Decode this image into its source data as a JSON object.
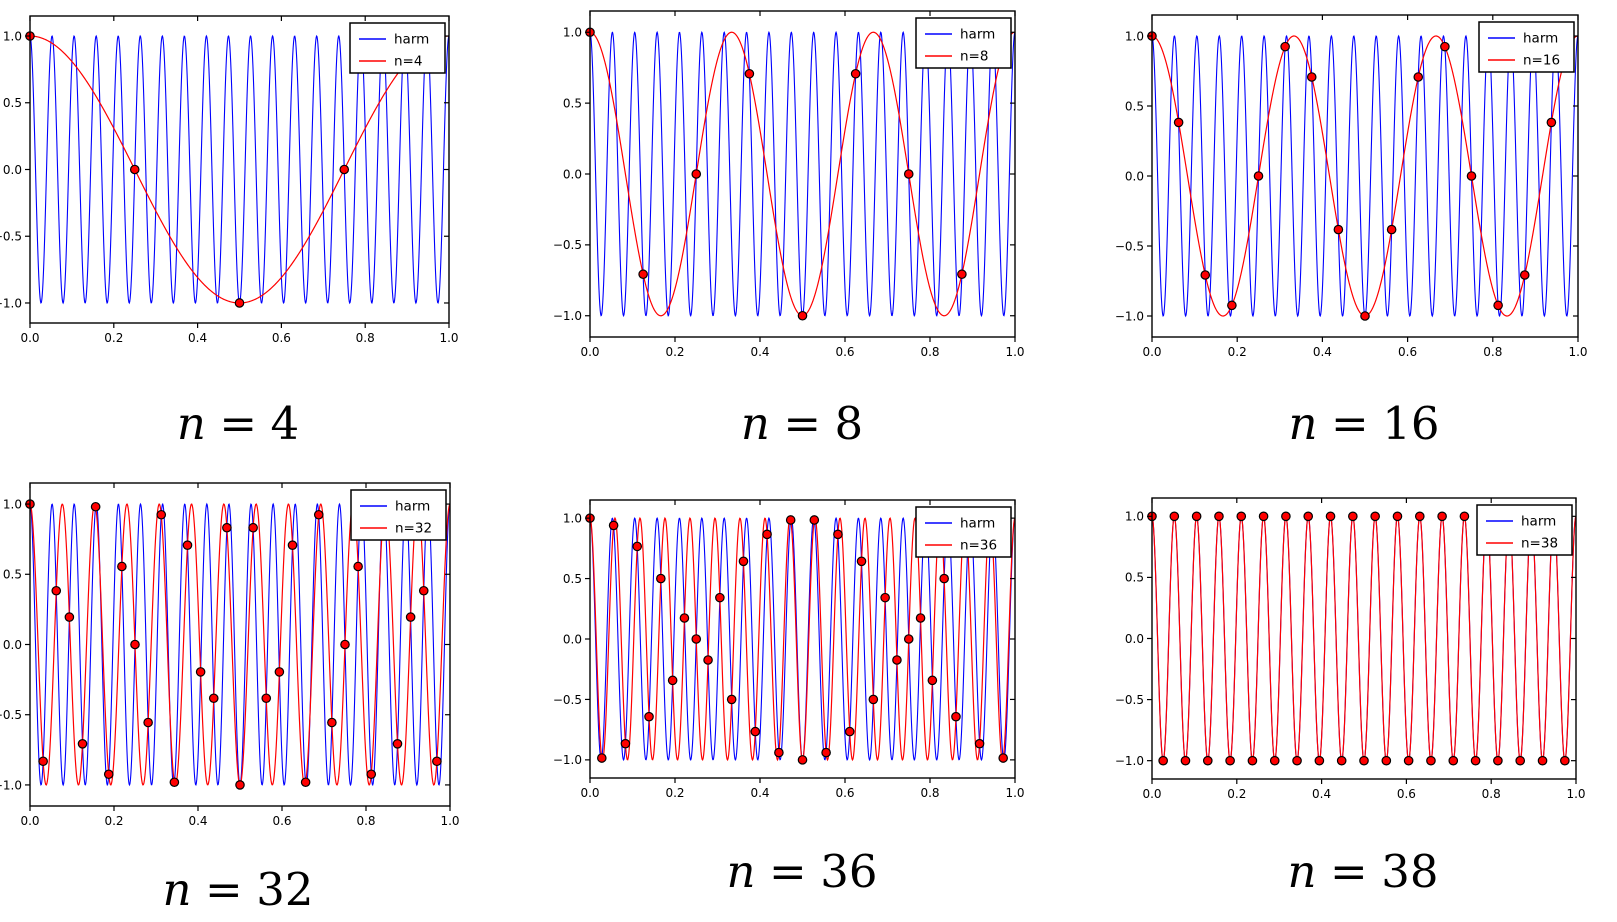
{
  "chart_data": {
    "type": "line",
    "title": "",
    "description": "Sampling and aliasing demonstration: a high-frequency harmonic cos(2*pi*19*x) on [0,1] (blue curve 'harm') is sampled at n uniform points (red dots at x=k/n); the red curve is the aliased low-frequency reconstruction cos(2*pi*f_alias*x).",
    "axes": {
      "xlim": [
        0,
        1
      ],
      "ylim_data": [
        -1,
        1
      ],
      "grid": false,
      "x_ticks": [
        {
          "v": 0.0,
          "label": "0.0"
        },
        {
          "v": 0.2,
          "label": "0.2"
        },
        {
          "v": 0.4,
          "label": "0.4"
        },
        {
          "v": 0.6,
          "label": "0.6"
        },
        {
          "v": 0.8,
          "label": "0.8"
        },
        {
          "v": 1.0,
          "label": "1.0"
        }
      ],
      "y_ticks": [
        {
          "v": 1.0,
          "label": "1.0"
        },
        {
          "v": 0.5,
          "label": "0.5"
        },
        {
          "v": 0.0,
          "label": "0.0"
        },
        {
          "v": -0.5,
          "label": "−0.5"
        },
        {
          "v": -1.0,
          "label": "−1.0"
        }
      ]
    },
    "colors": {
      "harm": "#0000ff",
      "alias": "#ff0000",
      "marker_fill": "#ff0000",
      "marker_edge": "#000000",
      "frame": "#000000",
      "legend_border": "#000000",
      "legend_bg": "#ffffff"
    },
    "legend_position": "upper right",
    "marker": "filled circle",
    "samples_rule": "x_k = k/n, y_k = cos(2π·19·k/n), k = 0…n−1",
    "subplots": [
      {
        "caption": {
          "symbol": "n",
          "relation": "=",
          "value": "4"
        },
        "legend": [
          "harm",
          "n=4"
        ],
        "harm_frequency": 19,
        "alias_frequency": 1,
        "n_samples": 4,
        "sample_points": [
          [
            0,
            1
          ],
          [
            0.25,
            0
          ],
          [
            0.5,
            -1
          ],
          [
            0.75,
            0
          ]
        ]
      },
      {
        "caption": {
          "symbol": "n",
          "relation": "=",
          "value": "8"
        },
        "legend": [
          "harm",
          "n=8"
        ],
        "harm_frequency": 19,
        "alias_frequency": 3,
        "n_samples": 8,
        "sample_points": [
          [
            0,
            1
          ],
          [
            0.125,
            -0.7071
          ],
          [
            0.25,
            0
          ],
          [
            0.375,
            0.7071
          ],
          [
            0.5,
            -1
          ],
          [
            0.625,
            0.7071
          ],
          [
            0.75,
            0
          ],
          [
            0.875,
            -0.7071
          ]
        ]
      },
      {
        "caption": {
          "symbol": "n",
          "relation": "=",
          "value": "16"
        },
        "legend": [
          "harm",
          "n=16"
        ],
        "harm_frequency": 19,
        "alias_frequency": 3,
        "n_samples": 16,
        "sample_points": [
          [
            0,
            1
          ],
          [
            0.0625,
            0.3827
          ],
          [
            0.125,
            -0.7071
          ],
          [
            0.1875,
            -0.9239
          ],
          [
            0.25,
            0
          ],
          [
            0.3125,
            0.9239
          ],
          [
            0.375,
            0.7071
          ],
          [
            0.4375,
            -0.3827
          ],
          [
            0.5,
            -1
          ],
          [
            0.5625,
            -0.3827
          ],
          [
            0.625,
            0.7071
          ],
          [
            0.6875,
            0.9239
          ],
          [
            0.75,
            0
          ],
          [
            0.8125,
            -0.9239
          ],
          [
            0.875,
            -0.7071
          ],
          [
            0.9375,
            0.3827
          ]
        ]
      },
      {
        "caption": {
          "symbol": "n",
          "relation": "=",
          "value": "32"
        },
        "legend": [
          "harm",
          "n=32"
        ],
        "harm_frequency": 19,
        "alias_frequency": 13,
        "n_samples": 32,
        "sample_points": "x_k = k/32, y_k = cos(2π·19·k/32), k = 0…31"
      },
      {
        "caption": {
          "symbol": "n",
          "relation": "=",
          "value": "36"
        },
        "legend": [
          "harm",
          "n=36"
        ],
        "harm_frequency": 19,
        "alias_frequency": 17,
        "n_samples": 36,
        "sample_points": "x_k = k/36, y_k = cos(2π·19·k/36), k = 0…35"
      },
      {
        "caption": {
          "symbol": "n",
          "relation": "=",
          "value": "38"
        },
        "legend": [
          "harm",
          "n=38"
        ],
        "harm_frequency": 19,
        "alias_frequency": 19,
        "n_samples": 38,
        "sample_points": "x_k = k/38, y_k = cos(2π·19·k/38) = ±1 alternating, k = 0…37"
      }
    ]
  }
}
